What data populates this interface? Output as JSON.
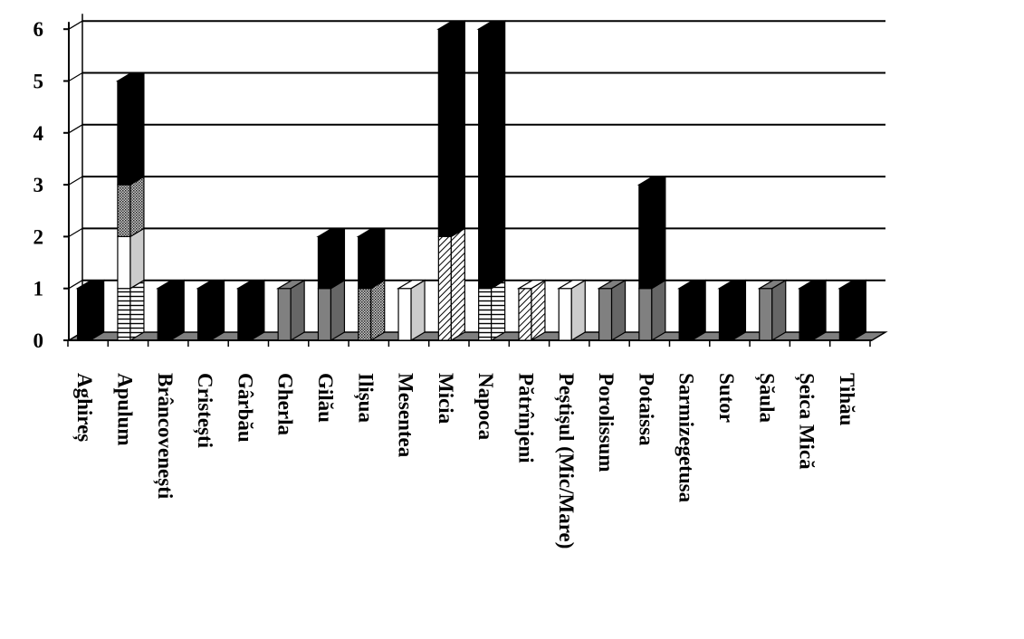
{
  "chart_data": {
    "type": "bar",
    "stacked": true,
    "style": "3d",
    "title": "",
    "xlabel": "",
    "ylabel": "",
    "ylim": [
      0,
      6
    ],
    "yticks": [
      "0",
      "1",
      "2",
      "3",
      "4",
      "5",
      "6"
    ],
    "grid": true,
    "legend": "none",
    "categories": [
      "Aghireș",
      "Apulum",
      "Brâncovenești",
      "Cristești",
      "Gârbău",
      "Gherla",
      "Gilău",
      "Ilișua",
      "Mesentea",
      "Micia",
      "Napoca",
      "Pătrînjeni",
      "Peștișul (Mic/Mare)",
      "Porolissum",
      "Potaissa",
      "Sarmizegetusa",
      "Sutor",
      "Șăula",
      "Șeica Mică",
      "Tihău"
    ],
    "series": [
      {
        "pattern": "horizontal-stripes",
        "color": "#ffffff",
        "values": [
          0,
          1,
          0,
          0,
          0,
          0,
          0,
          0,
          0,
          0,
          1,
          0,
          0,
          0,
          0,
          0,
          0,
          0,
          0,
          0
        ]
      },
      {
        "pattern": "diagonal-stripes",
        "color": "#ffffff",
        "values": [
          0,
          0,
          0,
          0,
          0,
          0,
          0,
          0,
          0,
          2,
          0,
          1,
          0,
          0,
          0,
          0,
          0,
          0,
          0,
          0
        ]
      },
      {
        "pattern": "solid",
        "color": "#ffffff",
        "values": [
          0,
          1,
          0,
          0,
          0,
          0,
          0,
          0,
          1,
          0,
          0,
          0,
          1,
          0,
          0,
          0,
          0,
          0,
          0,
          0
        ]
      },
      {
        "pattern": "dots",
        "color": "#888888",
        "values": [
          0,
          1,
          0,
          0,
          0,
          0,
          0,
          1,
          0,
          0,
          0,
          0,
          0,
          0,
          0,
          0,
          0,
          0,
          0,
          0
        ]
      },
      {
        "pattern": "solid",
        "color": "#808080",
        "values": [
          0,
          0,
          0,
          0,
          0,
          1,
          1,
          0,
          0,
          0,
          0,
          0,
          0,
          1,
          1,
          0,
          0,
          1,
          0,
          0
        ]
      },
      {
        "pattern": "solid",
        "color": "#000000",
        "values": [
          1,
          2,
          1,
          1,
          1,
          0,
          1,
          1,
          0,
          4,
          5,
          0,
          0,
          0,
          2,
          1,
          1,
          0,
          1,
          1
        ]
      }
    ]
  }
}
